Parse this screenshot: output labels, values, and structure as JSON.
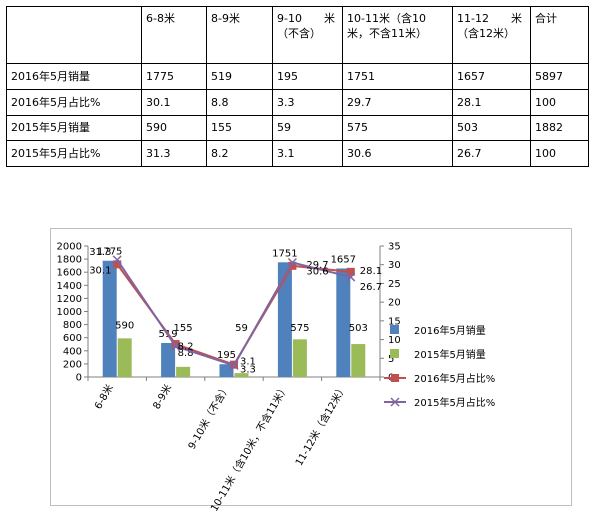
{
  "table": {
    "header": [
      "",
      "6-8米",
      "8-9米",
      "9-10　　米\n（不含）",
      "10-11米（含10\n米，不含11米）",
      "11-12　　米\n（含12米）",
      "合计"
    ],
    "rows": [
      [
        "2016年5月销量",
        "1775",
        "519",
        "195",
        "1751",
        "1657",
        "5897"
      ],
      [
        "2016年5月占比%",
        "30.1",
        "8.8",
        "3.3",
        "29.7",
        "28.1",
        "100"
      ],
      [
        "2015年5月销量",
        "590",
        "155",
        "59",
        "575",
        "503",
        "1882"
      ],
      [
        "2015年5月占比%",
        "31.3",
        "8.2",
        "3.1",
        "30.6",
        "26.7",
        "100"
      ]
    ]
  },
  "chart_data": {
    "type": "bar",
    "categories": [
      "6-8米",
      "8-9米",
      "9-10米（不含）",
      "10-11米（含10米，不含11米）",
      "11-12米（含12米）"
    ],
    "series": [
      {
        "name": "2016年5月销量",
        "kind": "bar",
        "axis": "left",
        "color": "#4f81bd",
        "values": [
          1775,
          519,
          195,
          1751,
          1657
        ]
      },
      {
        "name": "2015年5月销量",
        "kind": "bar",
        "axis": "left",
        "color": "#9bbb59",
        "values": [
          590,
          155,
          59,
          575,
          503
        ]
      },
      {
        "name": "2016年5月占比%",
        "kind": "line",
        "axis": "right",
        "color": "#c0504d",
        "marker": "square",
        "values": [
          30.1,
          8.8,
          3.3,
          29.7,
          28.1
        ]
      },
      {
        "name": "2015年5月占比%",
        "kind": "line",
        "axis": "right",
        "color": "#8064a2",
        "marker": "x",
        "values": [
          31.3,
          8.2,
          3.1,
          30.6,
          26.7
        ]
      }
    ],
    "y_left": {
      "min": 0,
      "max": 2000,
      "step": 200,
      "ticks": [
        "0",
        "200",
        "400",
        "600",
        "800",
        "1000",
        "1200",
        "1400",
        "1600",
        "1800",
        "2000"
      ]
    },
    "y_right": {
      "min": 0,
      "max": 35,
      "step": 5,
      "ticks": [
        "0",
        "5",
        "10",
        "15",
        "20",
        "25",
        "30",
        "35"
      ]
    },
    "legend": "right",
    "grid": false
  }
}
